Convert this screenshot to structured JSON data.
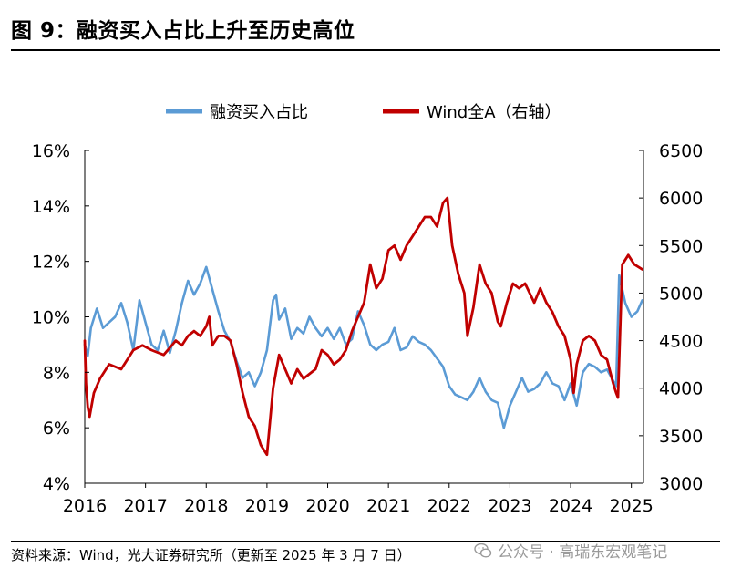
{
  "header": {
    "title": "图 9：融资买入占比上升至历史高位"
  },
  "footer": {
    "source": "资料来源：Wind，光大证券研究所（更新至 2025 年 3 月 7 日）",
    "watermark": "公众号 · 高瑞东宏观笔记",
    "watermark_icon": "wechat-icon"
  },
  "chart_data": {
    "type": "line",
    "x_ticks": [
      "2016",
      "2017",
      "2018",
      "2019",
      "2020",
      "2021",
      "2022",
      "2023",
      "2024",
      "2025"
    ],
    "x_range": [
      2016.0,
      2025.2
    ],
    "y_left": {
      "range": [
        4,
        16
      ],
      "ticks": [
        "4%",
        "6%",
        "8%",
        "10%",
        "12%",
        "14%",
        "16%"
      ],
      "tick_values": [
        4,
        6,
        8,
        10,
        12,
        14,
        16
      ]
    },
    "y_right": {
      "range": [
        3000,
        6500
      ],
      "ticks": [
        "3000",
        "3500",
        "4000",
        "4500",
        "5000",
        "5500",
        "6000",
        "6500"
      ],
      "tick_values": [
        3000,
        3500,
        4000,
        4500,
        5000,
        5500,
        6000,
        6500
      ]
    },
    "legend_position": "top-center",
    "series": [
      {
        "name": "融资买入占比",
        "axis": "left",
        "color": "#5B9BD5",
        "x": [
          2016.0,
          2016.05,
          2016.1,
          2016.2,
          2016.3,
          2016.4,
          2016.5,
          2016.6,
          2016.7,
          2016.8,
          2016.9,
          2017.0,
          2017.1,
          2017.2,
          2017.3,
          2017.4,
          2017.5,
          2017.6,
          2017.7,
          2017.8,
          2017.9,
          2018.0,
          2018.1,
          2018.2,
          2018.3,
          2018.4,
          2018.5,
          2018.6,
          2018.7,
          2018.8,
          2018.9,
          2019.0,
          2019.1,
          2019.15,
          2019.2,
          2019.3,
          2019.4,
          2019.5,
          2019.6,
          2019.7,
          2019.8,
          2019.9,
          2020.0,
          2020.1,
          2020.2,
          2020.3,
          2020.4,
          2020.5,
          2020.6,
          2020.7,
          2020.8,
          2020.9,
          2021.0,
          2021.1,
          2021.2,
          2021.3,
          2021.4,
          2021.5,
          2021.6,
          2021.7,
          2021.8,
          2021.9,
          2022.0,
          2022.1,
          2022.2,
          2022.3,
          2022.4,
          2022.5,
          2022.6,
          2022.7,
          2022.8,
          2022.9,
          2023.0,
          2023.1,
          2023.2,
          2023.3,
          2023.4,
          2023.5,
          2023.6,
          2023.7,
          2023.8,
          2023.9,
          2024.0,
          2024.1,
          2024.2,
          2024.3,
          2024.4,
          2024.5,
          2024.6,
          2024.7,
          2024.75,
          2024.8,
          2024.9,
          2025.0,
          2025.1,
          2025.18
        ],
        "y": [
          9.0,
          8.6,
          9.6,
          10.3,
          9.6,
          9.8,
          10.0,
          10.5,
          9.8,
          8.8,
          10.6,
          9.8,
          9.0,
          8.8,
          9.5,
          8.7,
          9.5,
          10.5,
          11.3,
          10.8,
          11.2,
          11.8,
          11.0,
          10.2,
          9.5,
          9.1,
          8.4,
          7.8,
          8.0,
          7.5,
          8.0,
          8.8,
          10.6,
          10.8,
          9.9,
          10.3,
          9.2,
          9.6,
          9.4,
          10.0,
          9.6,
          9.3,
          9.6,
          9.2,
          9.6,
          9.0,
          9.2,
          10.2,
          9.7,
          9.0,
          8.8,
          9.0,
          9.1,
          9.6,
          8.8,
          8.9,
          9.3,
          9.1,
          9.0,
          8.8,
          8.5,
          8.2,
          7.5,
          7.2,
          7.1,
          7.0,
          7.3,
          7.8,
          7.3,
          7.0,
          6.9,
          6.0,
          6.8,
          7.3,
          7.8,
          7.3,
          7.4,
          7.6,
          8.0,
          7.6,
          7.5,
          7.0,
          7.6,
          6.8,
          8.0,
          8.3,
          8.2,
          8.0,
          8.1,
          7.7,
          7.5,
          11.5,
          10.5,
          10.0,
          10.2,
          10.6
        ]
      },
      {
        "name": "Wind全A（右轴）",
        "axis": "right",
        "color": "#C00000",
        "x": [
          2016.0,
          2016.02,
          2016.05,
          2016.08,
          2016.15,
          2016.25,
          2016.4,
          2016.6,
          2016.8,
          2016.95,
          2017.1,
          2017.3,
          2017.5,
          2017.6,
          2017.7,
          2017.8,
          2017.9,
          2018.0,
          2018.05,
          2018.1,
          2018.2,
          2018.3,
          2018.4,
          2018.5,
          2018.6,
          2018.7,
          2018.8,
          2018.9,
          2019.0,
          2019.1,
          2019.2,
          2019.3,
          2019.4,
          2019.5,
          2019.6,
          2019.7,
          2019.8,
          2019.9,
          2020.0,
          2020.1,
          2020.2,
          2020.3,
          2020.4,
          2020.5,
          2020.6,
          2020.7,
          2020.8,
          2020.9,
          2021.0,
          2021.1,
          2021.2,
          2021.3,
          2021.4,
          2021.5,
          2021.6,
          2021.7,
          2021.8,
          2021.9,
          2021.97,
          2022.05,
          2022.15,
          2022.25,
          2022.3,
          2022.4,
          2022.5,
          2022.6,
          2022.7,
          2022.8,
          2022.85,
          2022.95,
          2023.05,
          2023.15,
          2023.25,
          2023.4,
          2023.5,
          2023.6,
          2023.7,
          2023.8,
          2023.9,
          2024.0,
          2024.05,
          2024.1,
          2024.2,
          2024.3,
          2024.4,
          2024.5,
          2024.6,
          2024.7,
          2024.75,
          2024.78,
          2024.85,
          2024.95,
          2025.05,
          2025.18
        ],
        "y": [
          4500,
          4050,
          3800,
          3700,
          3950,
          4100,
          4250,
          4200,
          4400,
          4450,
          4400,
          4350,
          4500,
          4450,
          4550,
          4600,
          4550,
          4650,
          4750,
          4450,
          4550,
          4550,
          4500,
          4250,
          3950,
          3700,
          3600,
          3400,
          3300,
          4000,
          4350,
          4200,
          4050,
          4200,
          4100,
          4150,
          4200,
          4400,
          4350,
          4250,
          4300,
          4400,
          4600,
          4750,
          4900,
          5300,
          5050,
          5150,
          5450,
          5500,
          5350,
          5500,
          5600,
          5700,
          5800,
          5800,
          5700,
          5950,
          6000,
          5500,
          5200,
          5000,
          4550,
          4850,
          5300,
          5100,
          5000,
          4700,
          4650,
          4900,
          5100,
          5050,
          5100,
          4900,
          5050,
          4900,
          4800,
          4650,
          4550,
          4300,
          3950,
          4250,
          4500,
          4550,
          4500,
          4350,
          4300,
          4050,
          3950,
          3900,
          5300,
          5400,
          5300,
          5250
        ]
      }
    ]
  }
}
